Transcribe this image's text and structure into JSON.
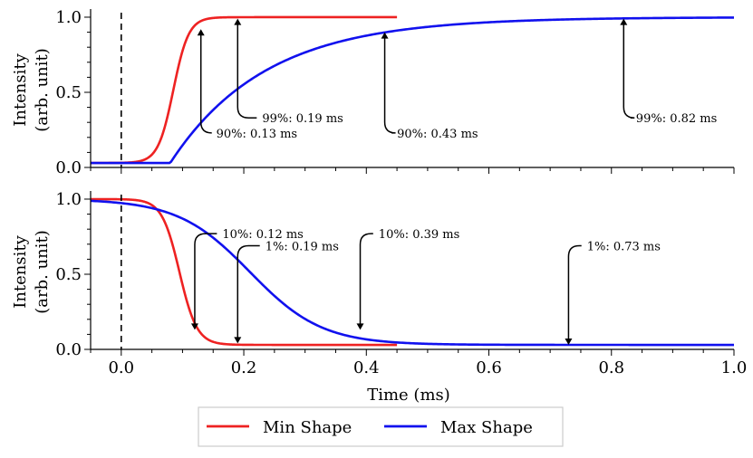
{
  "chart_data": [
    {
      "panel": "top",
      "type": "line",
      "title": "",
      "xlabel": "",
      "ylabel": [
        "Intensity",
        "(arb. unit)"
      ],
      "xlim": [
        -0.05,
        1.0
      ],
      "ylim": [
        0.0,
        1.03
      ],
      "yticks": [
        {
          "v": 0.0,
          "label": "0.0"
        },
        {
          "v": 0.5,
          "label": "0.5"
        },
        {
          "v": 1.0,
          "label": "1.0"
        }
      ],
      "dashed_vline_x": 0.0,
      "series": [
        {
          "name": "Min Shape",
          "color": "#ee2222",
          "kind": "rise",
          "x_end": 0.45,
          "base": 0.03,
          "mid": 0.085,
          "k": 80
        },
        {
          "name": "Max Shape",
          "color": "#1111ee",
          "kind": "rise",
          "x_end": 1.0,
          "base": 0.03,
          "t0": 0.08,
          "tau": 0.155
        }
      ],
      "annotations": [
        {
          "text": "90%: 0.13 ms",
          "color": "#ee2222",
          "x": 0.13,
          "y": 0.92,
          "text_x": 0.155,
          "text_y": 0.23
        },
        {
          "text": "99%: 0.19 ms",
          "color": "#ee2222",
          "x": 0.19,
          "y": 0.99,
          "text_x": 0.23,
          "text_y": 0.33
        },
        {
          "text": "90%: 0.43 ms",
          "color": "#1111ee",
          "x": 0.43,
          "y": 0.9,
          "text_x": 0.45,
          "text_y": 0.23
        },
        {
          "text": "99%: 0.82 ms",
          "color": "#1111ee",
          "x": 0.82,
          "y": 0.99,
          "text_x": 0.84,
          "text_y": 0.33
        }
      ]
    },
    {
      "panel": "bottom",
      "type": "line",
      "title": "",
      "xlabel": "Time (ms)",
      "ylabel": [
        "Intensity",
        "(arb. unit)"
      ],
      "xlim": [
        -0.05,
        1.0
      ],
      "ylim": [
        0.0,
        1.03
      ],
      "yticks": [
        {
          "v": 0.0,
          "label": "0.0"
        },
        {
          "v": 0.5,
          "label": "0.5"
        },
        {
          "v": 1.0,
          "label": "1.0"
        }
      ],
      "xticks": [
        {
          "v": 0.0,
          "label": "0.0"
        },
        {
          "v": 0.2,
          "label": "0.2"
        },
        {
          "v": 0.4,
          "label": "0.4"
        },
        {
          "v": 0.6,
          "label": "0.6"
        },
        {
          "v": 0.8,
          "label": "0.8"
        },
        {
          "v": 1.0,
          "label": "1.0"
        }
      ],
      "dashed_vline_x": 0.0,
      "series": [
        {
          "name": "Min Shape",
          "color": "#ee2222",
          "kind": "fall",
          "x_end": 0.45,
          "base": 0.03,
          "mid": 0.095,
          "k": 70
        },
        {
          "name": "Max Shape",
          "color": "#1111ee",
          "kind": "fall",
          "x_end": 1.0,
          "base": 0.03,
          "mid": 0.21,
          "k": 17
        }
      ],
      "annotations": [
        {
          "text": "10%: 0.12 ms",
          "color": "#ee2222",
          "x": 0.12,
          "y": 0.13,
          "text_x": 0.165,
          "text_y": 0.77
        },
        {
          "text": "1%: 0.19 ms",
          "color": "#ee2222",
          "x": 0.19,
          "y": 0.04,
          "text_x": 0.235,
          "text_y": 0.69
        },
        {
          "text": "10%: 0.39 ms",
          "color": "#1111ee",
          "x": 0.39,
          "y": 0.13,
          "text_x": 0.42,
          "text_y": 0.77
        },
        {
          "text": "1%: 0.73 ms",
          "color": "#1111ee",
          "x": 0.73,
          "y": 0.03,
          "text_x": 0.76,
          "text_y": 0.69
        }
      ]
    }
  ],
  "legend": {
    "items": [
      {
        "label": "Min Shape",
        "color": "#ee2222"
      },
      {
        "label": "Max Shape",
        "color": "#1111ee"
      }
    ]
  }
}
